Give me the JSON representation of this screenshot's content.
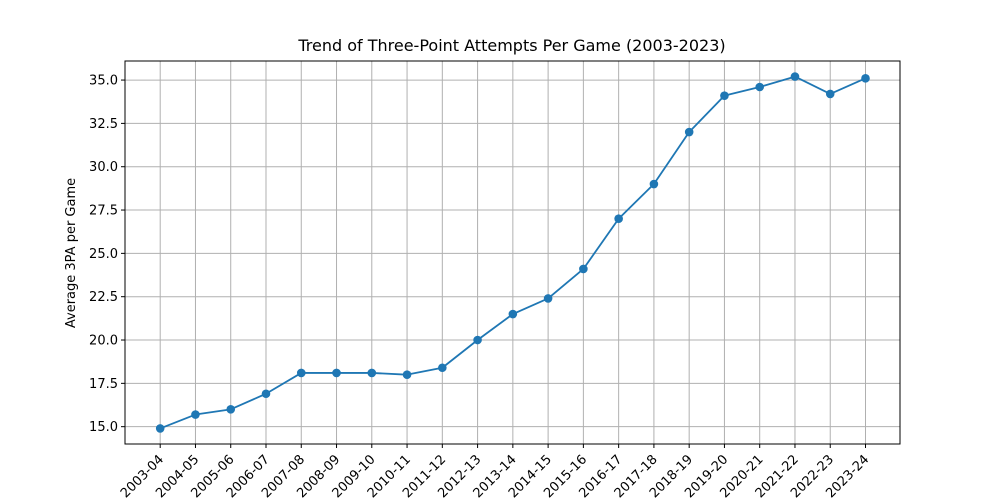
{
  "chart_data": {
    "type": "line",
    "title": "Trend of Three-Point Attempts Per Game (2003-2023)",
    "xlabel": "",
    "ylabel": "Average 3PA per Game",
    "categories": [
      "2003-04",
      "2004-05",
      "2005-06",
      "2006-07",
      "2007-08",
      "2008-09",
      "2009-10",
      "2010-11",
      "2011-12",
      "2012-13",
      "2013-14",
      "2014-15",
      "2015-16",
      "2016-17",
      "2017-18",
      "2018-19",
      "2019-20",
      "2020-21",
      "2021-22",
      "2022-23",
      "2023-24"
    ],
    "series": [
      {
        "values": [
          14.9,
          15.7,
          16.0,
          16.9,
          18.1,
          18.1,
          18.1,
          18.0,
          18.4,
          20.0,
          21.5,
          22.4,
          24.1,
          27.0,
          29.0,
          32.0,
          34.1,
          34.6,
          35.2,
          34.2,
          35.1
        ]
      }
    ],
    "ylim": [
      14.0,
      36.1
    ],
    "yticks": [
      15.0,
      17.5,
      20.0,
      22.5,
      25.0,
      27.5,
      30.0,
      32.5,
      35.0
    ],
    "ytick_labels": [
      "15.0",
      "17.5",
      "20.0",
      "22.5",
      "25.0",
      "27.5",
      "30.0",
      "32.5",
      "35.0"
    ],
    "grid": true,
    "line_color": "#1f77b4",
    "grid_color": "#b0b0b0"
  }
}
